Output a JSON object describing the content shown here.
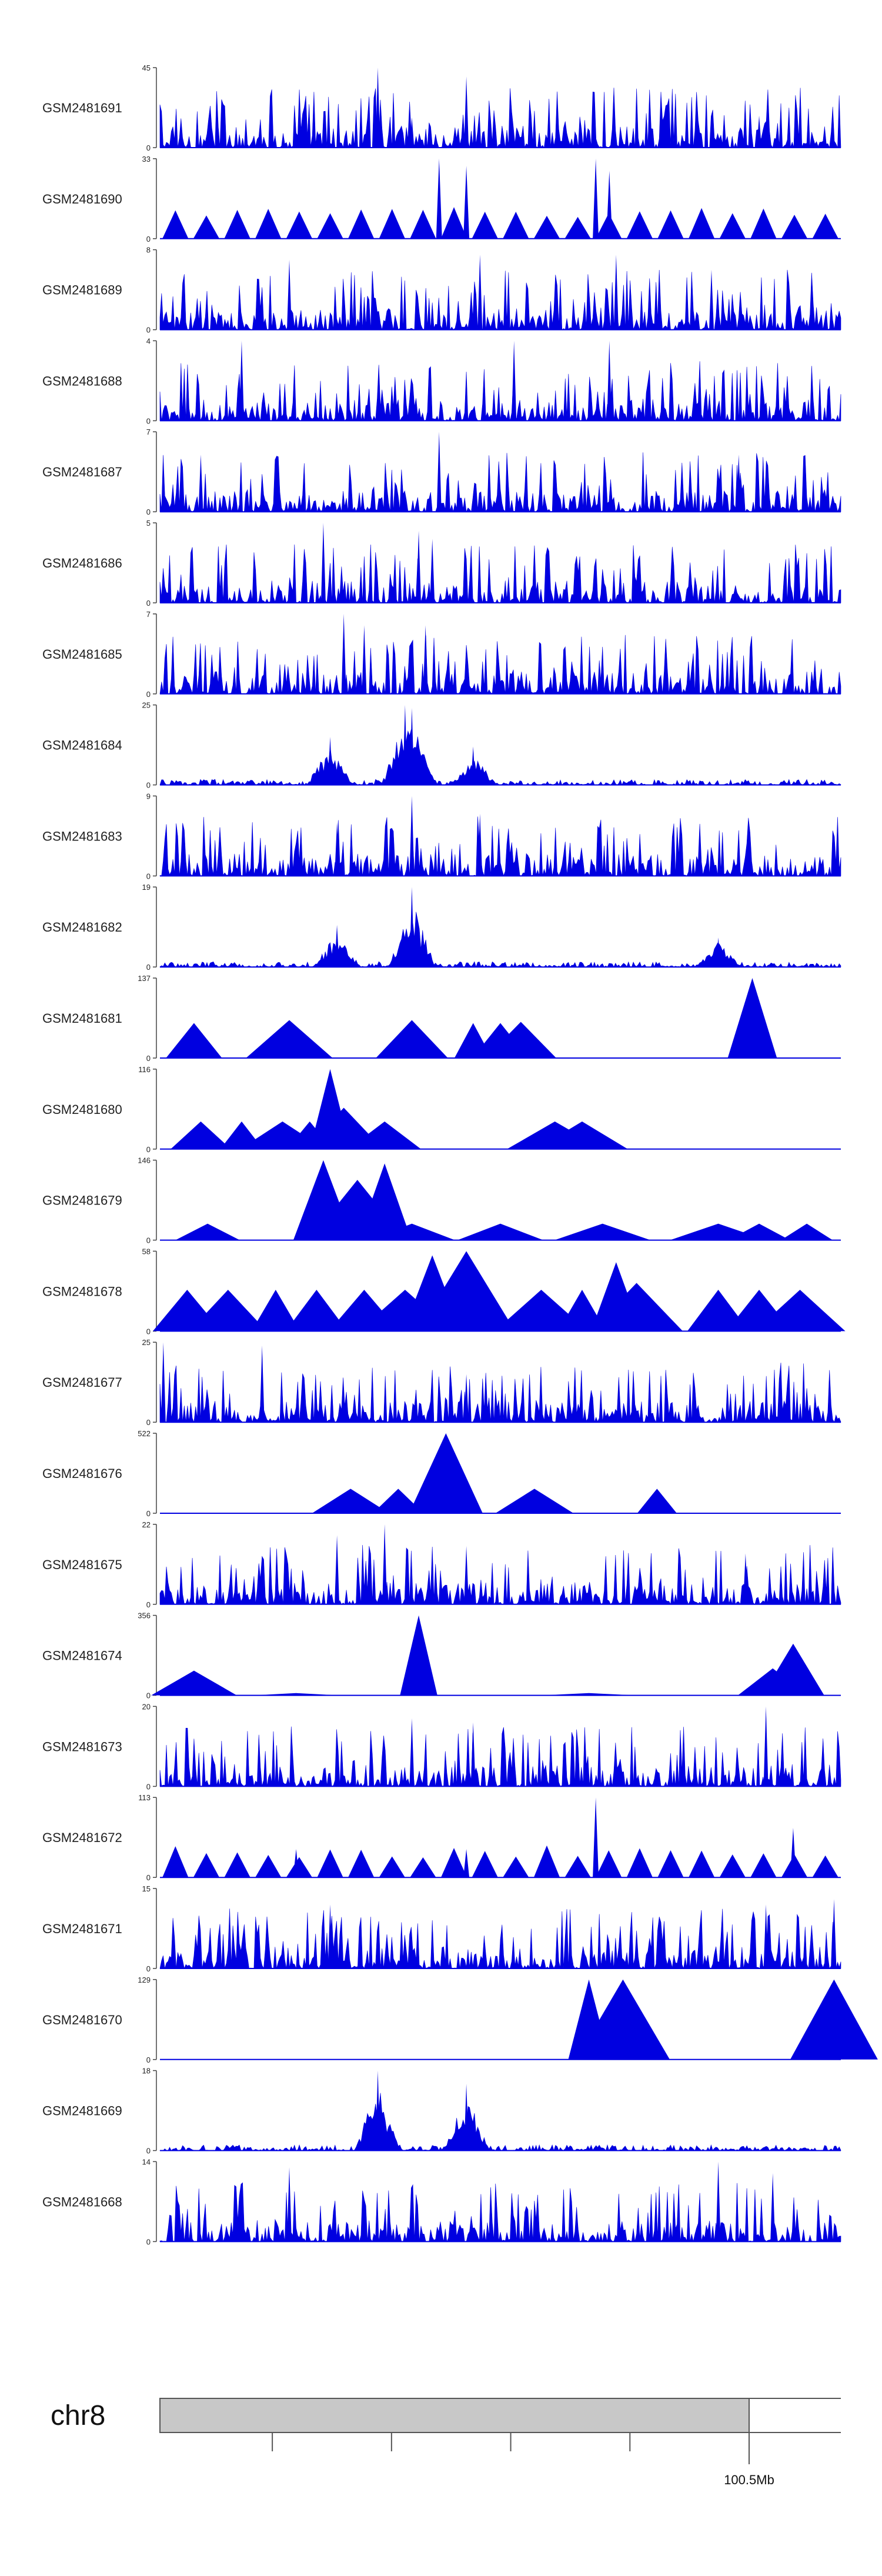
{
  "chart_data": {
    "type": "area",
    "color": "#0000e0",
    "chromosome": "chr8",
    "position_label": "100.5Mb",
    "tracks": [
      {
        "name": "GSM2481691",
        "ymax": 45,
        "ymin": 0,
        "style": "spiky",
        "peaks": [
          {
            "x": 0.32,
            "v": 45
          },
          {
            "x": 0.37,
            "v": 17
          },
          {
            "x": 0.45,
            "v": 40
          },
          {
            "x": 0.88,
            "v": 18
          }
        ]
      },
      {
        "name": "GSM2481690",
        "ymax": 33,
        "ymin": 0,
        "style": "triangles",
        "peaks": [
          {
            "x": 0.41,
            "v": 33
          },
          {
            "x": 0.45,
            "v": 30
          },
          {
            "x": 0.64,
            "v": 33
          },
          {
            "x": 0.66,
            "v": 28
          }
        ]
      },
      {
        "name": "GSM2481689",
        "ymax": 8,
        "ymin": 0,
        "style": "spiky",
        "peaks": [
          {
            "x": 0.19,
            "v": 7
          },
          {
            "x": 0.47,
            "v": 7.5
          },
          {
            "x": 0.67,
            "v": 7.5
          },
          {
            "x": 0.81,
            "v": 6
          }
        ]
      },
      {
        "name": "GSM2481688",
        "ymax": 4,
        "ymin": 0,
        "style": "spiky",
        "peaks": [
          {
            "x": 0.12,
            "v": 4
          },
          {
            "x": 0.52,
            "v": 4
          },
          {
            "x": 0.66,
            "v": 4
          }
        ]
      },
      {
        "name": "GSM2481687",
        "ymax": 7,
        "ymin": 0,
        "style": "spiky",
        "peaks": [
          {
            "x": 0.41,
            "v": 7
          },
          {
            "x": 0.06,
            "v": 5
          },
          {
            "x": 0.85,
            "v": 5
          }
        ]
      },
      {
        "name": "GSM2481686",
        "ymax": 5,
        "ymin": 0,
        "style": "spiky",
        "peaks": [
          {
            "x": 0.24,
            "v": 5
          },
          {
            "x": 0.38,
            "v": 4.5
          },
          {
            "x": 0.4,
            "v": 4
          }
        ]
      },
      {
        "name": "GSM2481685",
        "ymax": 7,
        "ymin": 0,
        "style": "spiky",
        "peaks": [
          {
            "x": 0.27,
            "v": 7
          },
          {
            "x": 0.3,
            "v": 6
          },
          {
            "x": 0.39,
            "v": 6
          }
        ]
      },
      {
        "name": "GSM2481684",
        "ymax": 25,
        "ymin": 0,
        "style": "clustered",
        "peaks": [
          {
            "x": 0.25,
            "v": 15
          },
          {
            "x": 0.36,
            "v": 25
          },
          {
            "x": 0.37,
            "v": 24
          },
          {
            "x": 0.46,
            "v": 12
          }
        ]
      },
      {
        "name": "GSM2481683",
        "ymax": 9,
        "ymin": 0,
        "style": "spiky",
        "peaks": [
          {
            "x": 0.37,
            "v": 9
          },
          {
            "x": 0.26,
            "v": 6
          },
          {
            "x": 0.47,
            "v": 7
          }
        ]
      },
      {
        "name": "GSM2481682",
        "ymax": 19,
        "ymin": 0,
        "style": "clustered",
        "peaks": [
          {
            "x": 0.37,
            "v": 19
          },
          {
            "x": 0.26,
            "v": 10
          },
          {
            "x": 0.82,
            "v": 7
          }
        ]
      },
      {
        "name": "GSM2481681",
        "ymax": 137,
        "ymin": 0,
        "style": "sparse",
        "peaks": [
          {
            "x": 0.05,
            "v": 60
          },
          {
            "x": 0.19,
            "v": 65
          },
          {
            "x": 0.37,
            "v": 65
          },
          {
            "x": 0.46,
            "v": 60
          },
          {
            "x": 0.5,
            "v": 60
          },
          {
            "x": 0.53,
            "v": 62
          },
          {
            "x": 0.87,
            "v": 137
          }
        ]
      },
      {
        "name": "GSM2481680",
        "ymax": 116,
        "ymin": 0,
        "style": "sparse",
        "peaks": [
          {
            "x": 0.06,
            "v": 40
          },
          {
            "x": 0.12,
            "v": 40
          },
          {
            "x": 0.18,
            "v": 40
          },
          {
            "x": 0.22,
            "v": 40
          },
          {
            "x": 0.25,
            "v": 116
          },
          {
            "x": 0.27,
            "v": 60
          },
          {
            "x": 0.33,
            "v": 40
          },
          {
            "x": 0.58,
            "v": 40
          },
          {
            "x": 0.62,
            "v": 40
          }
        ]
      },
      {
        "name": "GSM2481679",
        "ymax": 146,
        "ymin": 0,
        "style": "sparse",
        "peaks": [
          {
            "x": 0.07,
            "v": 30
          },
          {
            "x": 0.24,
            "v": 146
          },
          {
            "x": 0.29,
            "v": 110
          },
          {
            "x": 0.33,
            "v": 140
          },
          {
            "x": 0.37,
            "v": 30
          },
          {
            "x": 0.5,
            "v": 30
          },
          {
            "x": 0.65,
            "v": 30
          },
          {
            "x": 0.82,
            "v": 30
          },
          {
            "x": 0.88,
            "v": 30
          },
          {
            "x": 0.95,
            "v": 30
          }
        ]
      },
      {
        "name": "GSM2481678",
        "ymax": 58,
        "ymin": 0,
        "style": "sparse",
        "peaks": [
          {
            "x": 0.04,
            "v": 30
          },
          {
            "x": 0.1,
            "v": 30
          },
          {
            "x": 0.17,
            "v": 30
          },
          {
            "x": 0.23,
            "v": 30
          },
          {
            "x": 0.3,
            "v": 30
          },
          {
            "x": 0.36,
            "v": 30
          },
          {
            "x": 0.4,
            "v": 55
          },
          {
            "x": 0.45,
            "v": 58
          },
          {
            "x": 0.56,
            "v": 30
          },
          {
            "x": 0.62,
            "v": 30
          },
          {
            "x": 0.67,
            "v": 50
          },
          {
            "x": 0.7,
            "v": 35
          },
          {
            "x": 0.82,
            "v": 30
          },
          {
            "x": 0.88,
            "v": 30
          },
          {
            "x": 0.94,
            "v": 30
          }
        ]
      },
      {
        "name": "GSM2481677",
        "ymax": 25,
        "ymin": 0,
        "style": "spiky",
        "peaks": [
          {
            "x": 0.005,
            "v": 25
          },
          {
            "x": 0.15,
            "v": 24
          },
          {
            "x": 0.45,
            "v": 15
          },
          {
            "x": 0.6,
            "v": 9
          }
        ]
      },
      {
        "name": "GSM2481676",
        "ymax": 522,
        "ymin": 0,
        "style": "sparse",
        "peaks": [
          {
            "x": 0.28,
            "v": 160
          },
          {
            "x": 0.35,
            "v": 160
          },
          {
            "x": 0.42,
            "v": 522
          },
          {
            "x": 0.55,
            "v": 160
          },
          {
            "x": 0.73,
            "v": 160
          }
        ]
      },
      {
        "name": "GSM2481675",
        "ymax": 22,
        "ymin": 0,
        "style": "spiky",
        "peaks": [
          {
            "x": 0.26,
            "v": 19
          },
          {
            "x": 0.33,
            "v": 22
          },
          {
            "x": 0.45,
            "v": 16
          },
          {
            "x": 0.86,
            "v": 14
          }
        ]
      },
      {
        "name": "GSM2481674",
        "ymax": 356,
        "ymin": 0,
        "style": "sparse",
        "peaks": [
          {
            "x": 0.05,
            "v": 110
          },
          {
            "x": 0.2,
            "v": 10
          },
          {
            "x": 0.38,
            "v": 356
          },
          {
            "x": 0.63,
            "v": 10
          },
          {
            "x": 0.9,
            "v": 120
          },
          {
            "x": 0.93,
            "v": 230
          }
        ]
      },
      {
        "name": "GSM2481673",
        "ymax": 20,
        "ymin": 0,
        "style": "spiky",
        "peaks": [
          {
            "x": 0.37,
            "v": 17
          },
          {
            "x": 0.46,
            "v": 16
          },
          {
            "x": 0.89,
            "v": 20
          }
        ]
      },
      {
        "name": "GSM2481672",
        "ymax": 113,
        "ymin": 0,
        "style": "triangles",
        "peaks": [
          {
            "x": 0.64,
            "v": 113
          },
          {
            "x": 0.93,
            "v": 70
          },
          {
            "x": 0.2,
            "v": 40
          },
          {
            "x": 0.45,
            "v": 40
          }
        ]
      },
      {
        "name": "GSM2481671",
        "ymax": 15,
        "ymin": 0,
        "style": "spiky",
        "peaks": [
          {
            "x": 0.25,
            "v": 12
          },
          {
            "x": 0.89,
            "v": 12
          },
          {
            "x": 0.99,
            "v": 13
          }
        ]
      },
      {
        "name": "GSM2481670",
        "ymax": 129,
        "ymin": 0,
        "style": "sparse",
        "peaks": [
          {
            "x": 0.63,
            "v": 129
          },
          {
            "x": 0.68,
            "v": 129
          },
          {
            "x": 0.99,
            "v": 129
          }
        ]
      },
      {
        "name": "GSM2481669",
        "ymax": 18,
        "ymin": 0,
        "style": "clustered",
        "peaks": [
          {
            "x": 0.32,
            "v": 18
          },
          {
            "x": 0.45,
            "v": 15
          }
        ]
      },
      {
        "name": "GSM2481668",
        "ymax": 14,
        "ymin": 0,
        "style": "spiky",
        "peaks": [
          {
            "x": 0.19,
            "v": 13
          },
          {
            "x": 0.82,
            "v": 14
          },
          {
            "x": 0.9,
            "v": 12
          }
        ]
      }
    ],
    "scale": {
      "ticks": [
        0.165,
        0.34,
        0.515,
        0.69,
        0.865
      ],
      "marked_tick": 0.865
    }
  }
}
